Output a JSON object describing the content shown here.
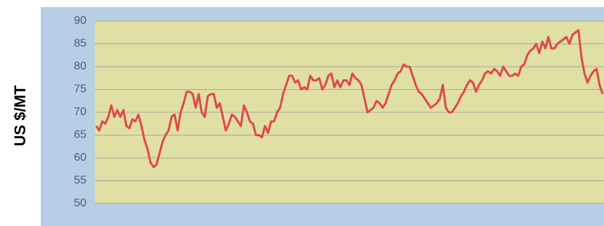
{
  "chart_data": {
    "type": "line",
    "ylabel": "US $/MT",
    "ylim": [
      50,
      90
    ],
    "yticks": [
      50,
      55,
      60,
      65,
      70,
      75,
      80,
      85,
      90
    ],
    "grid": true,
    "series": [
      {
        "color": "#e0484a",
        "values": [
          67,
          66,
          68,
          67.5,
          69,
          71.5,
          69,
          70.5,
          69,
          70.5,
          67,
          66.5,
          68.5,
          68,
          69.5,
          67,
          64,
          62,
          59,
          58,
          58.5,
          61,
          63.5,
          65,
          66,
          69,
          69.5,
          66,
          70,
          72,
          74.5,
          74.5,
          74,
          71,
          74,
          70,
          69,
          73.5,
          74,
          74,
          71,
          72,
          69,
          66,
          67.5,
          69.5,
          69,
          68,
          67,
          71.5,
          70,
          68,
          67.5,
          65,
          65,
          64.5,
          67,
          65.5,
          68,
          68,
          70,
          71,
          74,
          76,
          78,
          78,
          76.5,
          77,
          75,
          75.5,
          75,
          78,
          77,
          77,
          77.5,
          75,
          76,
          78,
          78.5,
          75.5,
          77,
          75.5,
          77,
          77,
          76,
          78.5,
          77.5,
          77,
          76,
          73,
          70,
          70.5,
          71,
          72.5,
          72,
          71,
          72,
          74,
          76,
          77,
          78.5,
          79,
          80.5,
          80,
          80,
          78,
          76,
          74.5,
          74,
          73,
          72,
          71,
          71.5,
          72,
          73,
          76,
          71,
          70,
          70,
          71,
          72,
          73.5,
          74.5,
          76,
          77,
          76.5,
          74.5,
          76,
          77,
          78.5,
          79,
          78.5,
          79.5,
          79,
          78,
          80,
          79,
          78,
          78,
          78.5,
          78,
          80,
          80.5,
          82.5,
          83.5,
          84,
          85,
          83,
          85.5,
          84,
          86.5,
          84,
          84,
          85,
          85.5,
          86,
          86.5,
          85,
          87,
          87.5,
          88,
          82,
          78.5,
          76.5,
          78,
          79,
          79.5,
          76,
          74
        ]
      }
    ]
  }
}
